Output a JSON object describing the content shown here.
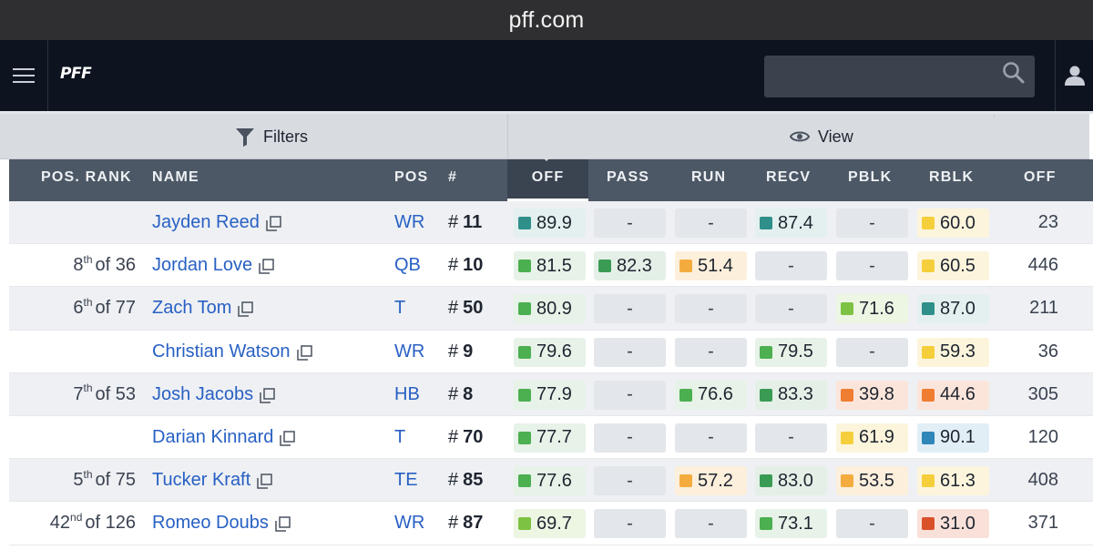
{
  "browser": {
    "url": "pff.com"
  },
  "header": {
    "logo": "PFF",
    "search": {
      "placeholder": ""
    }
  },
  "toolbar": {
    "filters_label": "Filters",
    "view_label": "View"
  },
  "colors": {
    "teal": "#2f8f8a",
    "green_dark": "#3a9b54",
    "green": "#4caf50",
    "green_light": "#7dc242",
    "yellow": "#f5cf3b",
    "orange_light": "#f4ac3f",
    "orange": "#ef7d32",
    "red": "#d9512b",
    "blue": "#2f86b8"
  },
  "table": {
    "columns": [
      "POS. RANK",
      "NAME",
      "POS",
      "#",
      "OFF",
      "PASS",
      "RUN",
      "RECV",
      "PBLK",
      "RBLK",
      "OFF"
    ],
    "rows": [
      {
        "rank_num": "",
        "rank_sup": "",
        "rank_rest": "",
        "name": "Jayden Reed",
        "pos": "WR",
        "num": "11",
        "off": {
          "v": "89.9",
          "c": "teal",
          "bg": "#e4f0ef"
        },
        "pass": {
          "v": "-"
        },
        "run": {
          "v": "-"
        },
        "recv": {
          "v": "87.4",
          "c": "teal",
          "bg": "#e4f0ef"
        },
        "pblk": {
          "v": "-"
        },
        "rblk": {
          "v": "60.0",
          "c": "yellow",
          "bg": "#fcf5dc"
        },
        "snaps": "23"
      },
      {
        "rank_num": "8",
        "rank_sup": "th",
        "rank_rest": "of 36",
        "name": "Jordan Love",
        "pos": "QB",
        "num": "10",
        "off": {
          "v": "81.5",
          "c": "green",
          "bg": "#e7f2e8"
        },
        "pass": {
          "v": "82.3",
          "c": "green_dark",
          "bg": "#e4f0e7"
        },
        "run": {
          "v": "51.4",
          "c": "orange_light",
          "bg": "#fcefdc"
        },
        "recv": {
          "v": "-"
        },
        "pblk": {
          "v": "-"
        },
        "rblk": {
          "v": "60.5",
          "c": "yellow",
          "bg": "#fcf5dc"
        },
        "snaps": "446"
      },
      {
        "rank_num": "6",
        "rank_sup": "th",
        "rank_rest": "of 77",
        "name": "Zach Tom",
        "pos": "T",
        "num": "50",
        "off": {
          "v": "80.9",
          "c": "green",
          "bg": "#e7f2e8"
        },
        "pass": {
          "v": "-"
        },
        "run": {
          "v": "-"
        },
        "recv": {
          "v": "-"
        },
        "pblk": {
          "v": "71.6",
          "c": "green_light",
          "bg": "#edf5e3"
        },
        "rblk": {
          "v": "87.0",
          "c": "teal",
          "bg": "#e4f0ef"
        },
        "snaps": "211"
      },
      {
        "rank_num": "",
        "rank_sup": "",
        "rank_rest": "",
        "name": "Christian Watson",
        "pos": "WR",
        "num": "9",
        "off": {
          "v": "79.6",
          "c": "green",
          "bg": "#e7f2e8"
        },
        "pass": {
          "v": "-"
        },
        "run": {
          "v": "-"
        },
        "recv": {
          "v": "79.5",
          "c": "green",
          "bg": "#e7f2e8"
        },
        "pblk": {
          "v": "-"
        },
        "rblk": {
          "v": "59.3",
          "c": "yellow",
          "bg": "#fcf5dc"
        },
        "snaps": "36"
      },
      {
        "rank_num": "7",
        "rank_sup": "th",
        "rank_rest": "of 53",
        "name": "Josh Jacobs",
        "pos": "HB",
        "num": "8",
        "off": {
          "v": "77.9",
          "c": "green",
          "bg": "#e7f2e8"
        },
        "pass": {
          "v": "-"
        },
        "run": {
          "v": "76.6",
          "c": "green",
          "bg": "#e7f2e8"
        },
        "recv": {
          "v": "83.3",
          "c": "green_dark",
          "bg": "#e4f0e7"
        },
        "pblk": {
          "v": "39.8",
          "c": "orange",
          "bg": "#fbe5da"
        },
        "rblk": {
          "v": "44.6",
          "c": "orange",
          "bg": "#fbe5da"
        },
        "snaps": "305"
      },
      {
        "rank_num": "",
        "rank_sup": "",
        "rank_rest": "",
        "name": "Darian Kinnard",
        "pos": "T",
        "num": "70",
        "off": {
          "v": "77.7",
          "c": "green",
          "bg": "#e7f2e8"
        },
        "pass": {
          "v": "-"
        },
        "run": {
          "v": "-"
        },
        "recv": {
          "v": "-"
        },
        "pblk": {
          "v": "61.9",
          "c": "yellow",
          "bg": "#fcf5dc"
        },
        "rblk": {
          "v": "90.1",
          "c": "blue",
          "bg": "#e1eef6"
        },
        "snaps": "120"
      },
      {
        "rank_num": "5",
        "rank_sup": "th",
        "rank_rest": "of 75",
        "name": "Tucker Kraft",
        "pos": "TE",
        "num": "85",
        "off": {
          "v": "77.6",
          "c": "green",
          "bg": "#e7f2e8"
        },
        "pass": {
          "v": "-"
        },
        "run": {
          "v": "57.2",
          "c": "orange_light",
          "bg": "#fcefdc"
        },
        "recv": {
          "v": "83.0",
          "c": "green_dark",
          "bg": "#e4f0e7"
        },
        "pblk": {
          "v": "53.5",
          "c": "orange_light",
          "bg": "#fcefdc"
        },
        "rblk": {
          "v": "61.3",
          "c": "yellow",
          "bg": "#fcf5dc"
        },
        "snaps": "408"
      },
      {
        "rank_num": "42",
        "rank_sup": "nd",
        "rank_rest": "of 126",
        "name": "Romeo Doubs",
        "pos": "WR",
        "num": "87",
        "off": {
          "v": "69.7",
          "c": "green_light",
          "bg": "#edf5e3"
        },
        "pass": {
          "v": "-"
        },
        "run": {
          "v": "-"
        },
        "recv": {
          "v": "73.1",
          "c": "green",
          "bg": "#e7f2e8"
        },
        "pblk": {
          "v": "-"
        },
        "rblk": {
          "v": "31.0",
          "c": "red",
          "bg": "#f9e1da"
        },
        "snaps": "371"
      }
    ]
  }
}
